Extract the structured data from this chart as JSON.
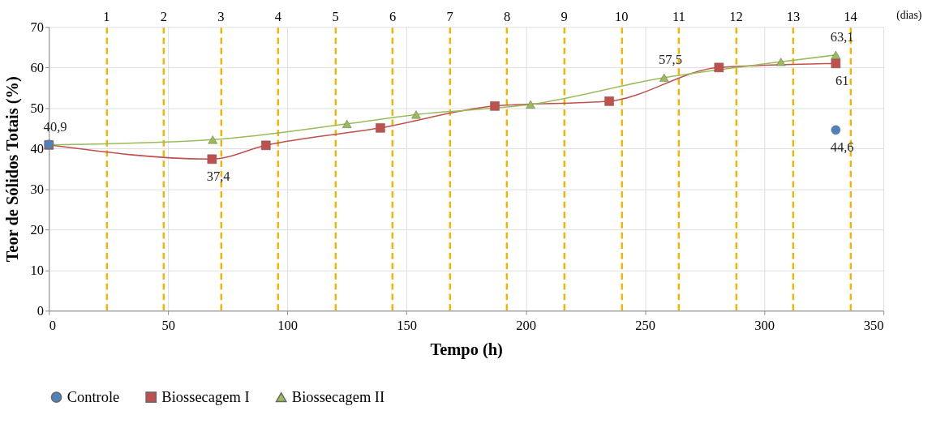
{
  "chart_data": {
    "type": "line",
    "xlabel": "Tempo (h)",
    "ylabel": "Teor de Sólidos Totais (%)",
    "x2label": "(dias)",
    "xlim": [
      0,
      350
    ],
    "xticks": [
      0,
      50,
      100,
      150,
      200,
      250,
      300,
      350
    ],
    "ylim": [
      0,
      70
    ],
    "yticks": [
      0,
      10,
      20,
      30,
      40,
      50,
      60,
      70
    ],
    "x2lim": [
      0,
      14.583
    ],
    "x2ticks": [
      1,
      2,
      3,
      4,
      5,
      6,
      7,
      8,
      9,
      10,
      11,
      12,
      13,
      14
    ],
    "grid": true,
    "legend": "bottom",
    "line_style": "solid",
    "series": [
      {
        "name": "Controle",
        "type": "scatter",
        "marker": "circle",
        "color": "#4f81bd",
        "x": [
          0,
          330
        ],
        "values": [
          41,
          44.6
        ]
      },
      {
        "name": "Biossecagem I",
        "marker": "square",
        "color": "#c0504d",
        "x": [
          0,
          68.4,
          91,
          139,
          187,
          235,
          281,
          330
        ],
        "values": [
          40.9,
          37.4,
          40.8,
          45.1,
          50.5,
          51.7,
          60,
          61
        ]
      },
      {
        "name": "Biossecagem II",
        "marker": "triangle",
        "color": "#9bbb59",
        "x": [
          0,
          68.7,
          125,
          154,
          202,
          258,
          307,
          330
        ],
        "values": [
          40.9,
          42.2,
          46.1,
          48.4,
          50.9,
          57.5,
          61.4,
          63.1
        ]
      }
    ],
    "annotations": [
      {
        "text": "40,9",
        "x": 0,
        "y": 40.9
      },
      {
        "text": "37,4",
        "x": 68.4,
        "y": 37.4
      },
      {
        "text": "57,5",
        "x": 258,
        "y": 57.5
      },
      {
        "text": "61",
        "x": 330,
        "y": 61
      },
      {
        "text": "63,1",
        "x": 330,
        "y": 63.1
      },
      {
        "text": "44,6",
        "x": 330,
        "y": 44.6
      }
    ]
  }
}
